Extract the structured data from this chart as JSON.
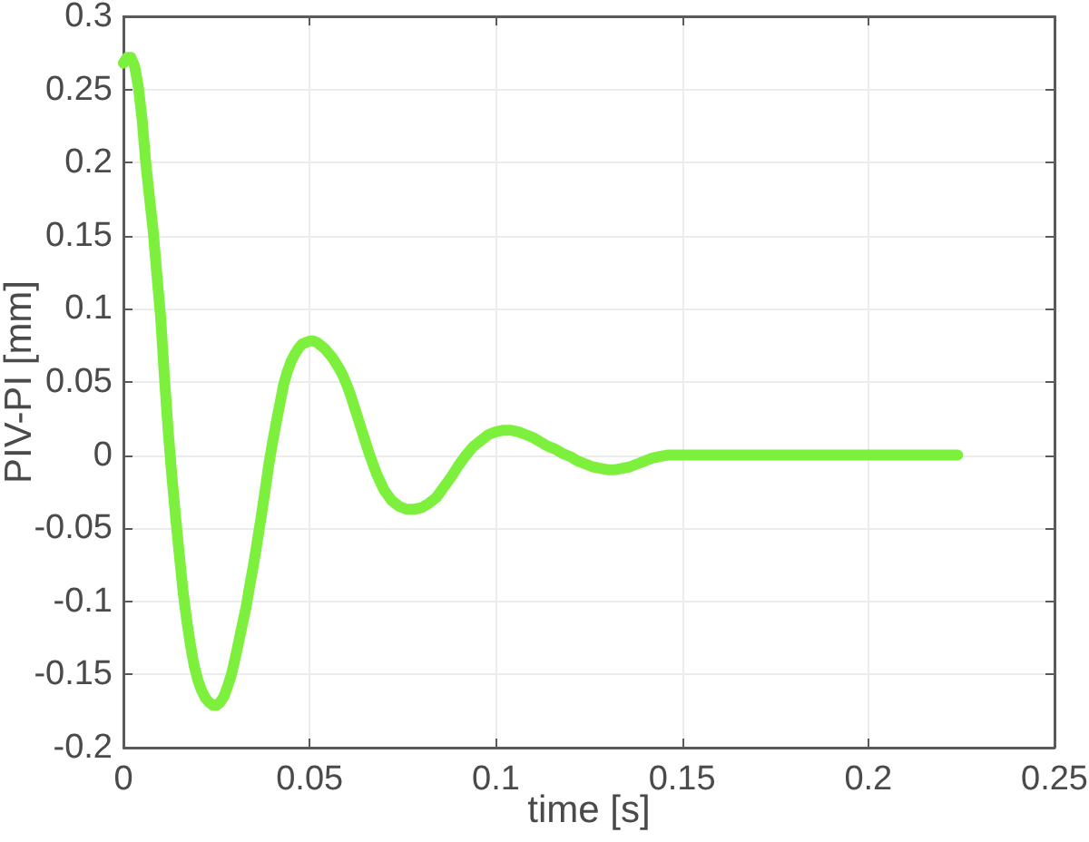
{
  "chart_data": {
    "type": "line",
    "xlabel": "time [s]",
    "ylabel": "PIV-PI [mm]",
    "x": [
      0,
      0.001,
      0.002,
      0.003,
      0.004,
      0.005,
      0.006,
      0.007,
      0.008,
      0.009,
      0.01,
      0.011,
      0.012,
      0.013,
      0.014,
      0.015,
      0.016,
      0.017,
      0.018,
      0.019,
      0.02,
      0.021,
      0.022,
      0.023,
      0.024,
      0.025,
      0.026,
      0.027,
      0.028,
      0.029,
      0.03,
      0.031,
      0.032,
      0.033,
      0.034,
      0.035,
      0.036,
      0.037,
      0.038,
      0.039,
      0.04,
      0.041,
      0.042,
      0.043,
      0.044,
      0.045,
      0.046,
      0.047,
      0.048,
      0.049,
      0.05,
      0.051,
      0.052,
      0.053,
      0.054,
      0.055,
      0.056,
      0.057,
      0.058,
      0.059,
      0.06,
      0.061,
      0.062,
      0.063,
      0.064,
      0.065,
      0.066,
      0.068,
      0.07,
      0.072,
      0.074,
      0.076,
      0.078,
      0.08,
      0.082,
      0.084,
      0.086,
      0.088,
      0.09,
      0.092,
      0.094,
      0.096,
      0.098,
      0.1,
      0.102,
      0.104,
      0.106,
      0.108,
      0.11,
      0.112,
      0.114,
      0.116,
      0.118,
      0.12,
      0.122,
      0.124,
      0.126,
      0.128,
      0.13,
      0.132,
      0.134,
      0.136,
      0.138,
      0.14,
      0.142,
      0.144,
      0.146,
      0.15,
      0.16,
      0.17,
      0.18,
      0.19,
      0.2,
      0.21,
      0.224
    ],
    "series": [
      {
        "color": "#7cf03c",
        "values": [
          0.268,
          0.272,
          0.272,
          0.266,
          0.252,
          0.23,
          0.2,
          0.176,
          0.153,
          0.123,
          0.094,
          0.054,
          0.017,
          -0.014,
          -0.042,
          -0.068,
          -0.093,
          -0.113,
          -0.13,
          -0.144,
          -0.154,
          -0.161,
          -0.166,
          -0.169,
          -0.171,
          -0.171,
          -0.169,
          -0.165,
          -0.158,
          -0.15,
          -0.139,
          -0.127,
          -0.115,
          -0.103,
          -0.088,
          -0.074,
          -0.058,
          -0.042,
          -0.025,
          -0.007,
          0.008,
          0.022,
          0.035,
          0.048,
          0.057,
          0.064,
          0.069,
          0.073,
          0.076,
          0.077,
          0.078,
          0.078,
          0.077,
          0.075,
          0.073,
          0.07,
          0.067,
          0.063,
          0.059,
          0.054,
          0.048,
          0.041,
          0.033,
          0.025,
          0.017,
          0.009,
          0.001,
          -0.013,
          -0.024,
          -0.031,
          -0.035,
          -0.037,
          -0.037,
          -0.036,
          -0.033,
          -0.029,
          -0.022,
          -0.015,
          -0.007,
          0.0,
          0.006,
          0.01,
          0.014,
          0.016,
          0.017,
          0.017,
          0.016,
          0.014,
          0.012,
          0.009,
          0.006,
          0.004,
          0.001,
          -0.001,
          -0.004,
          -0.006,
          -0.008,
          -0.009,
          -0.01,
          -0.01,
          -0.009,
          -0.008,
          -0.006,
          -0.004,
          -0.002,
          -0.001,
          0.0,
          0.0,
          0.0,
          0.0,
          0.0,
          0.0,
          0.0,
          0.0,
          0.0
        ]
      }
    ],
    "xlim": [
      0,
      0.25
    ],
    "ylim": [
      -0.2,
      0.3
    ],
    "xticks": [
      0,
      0.05,
      0.1,
      0.15,
      0.2,
      0.25
    ],
    "yticks": [
      -0.2,
      -0.15,
      -0.1,
      -0.05,
      0,
      0.05,
      0.1,
      0.15,
      0.2,
      0.25,
      0.3
    ],
    "grid": true,
    "marker": "none",
    "line_style": "solid"
  }
}
